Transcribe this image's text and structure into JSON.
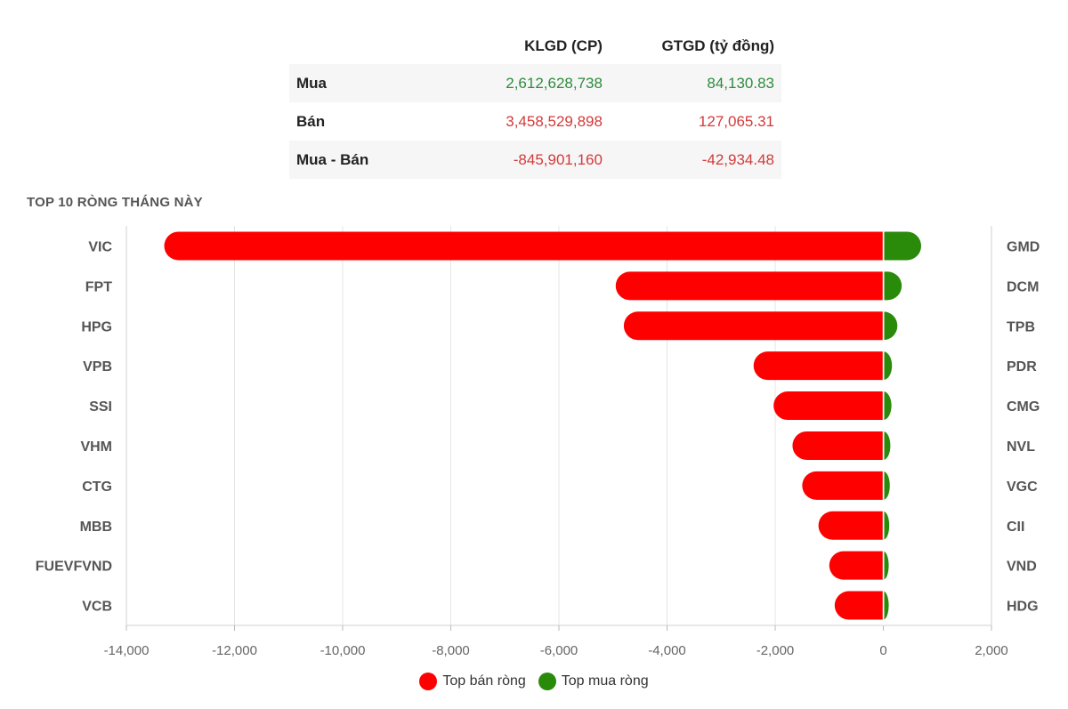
{
  "summary": {
    "headers": [
      "KLGD (CP)",
      "GTGD (tỷ đồng)"
    ],
    "rows": [
      {
        "label": "Mua",
        "klgd": "2,612,628,738",
        "gtgd": "84,130.83"
      },
      {
        "label": "Bán",
        "klgd": "3,458,529,898",
        "gtgd": "127,065.31"
      },
      {
        "label": "Mua - Bán",
        "klgd": "-845,901,160",
        "gtgd": "-42,934.48"
      }
    ]
  },
  "colors": {
    "sell": "#ff0000",
    "buy": "#2a8a0a",
    "positive_text": "#2e8b3c",
    "negative_text": "#d23a3a"
  },
  "chart_data": {
    "type": "bar",
    "orientation": "horizontal",
    "title": "TOP 10 RÒNG THÁNG NÀY",
    "sell_categories": [
      "VIC",
      "FPT",
      "HPG",
      "VPB",
      "SSI",
      "VHM",
      "CTG",
      "MBB",
      "FUEVFVND",
      "VCB"
    ],
    "buy_categories": [
      "GMD",
      "DCM",
      "TPB",
      "PDR",
      "CMG",
      "NVL",
      "VGC",
      "CII",
      "VND",
      "HDG"
    ],
    "series": [
      {
        "name": "Top bán ròng",
        "values": [
          -13300,
          -4950,
          -4800,
          -2400,
          -2030,
          -1680,
          -1500,
          -1200,
          -1000,
          -900
        ]
      },
      {
        "name": "Top mua ròng",
        "values": [
          700,
          340,
          260,
          160,
          150,
          130,
          120,
          110,
          100,
          100
        ]
      }
    ],
    "xlim": [
      -14000,
      2000
    ],
    "xticks": [
      -14000,
      -12000,
      -10000,
      -8000,
      -6000,
      -4000,
      -2000,
      0,
      2000
    ],
    "xtick_labels": [
      "-14,000",
      "-12,000",
      "-10,000",
      "-8,000",
      "-6,000",
      "-4,000",
      "-2,000",
      "0",
      "2,000"
    ],
    "grid": true,
    "legend_position": "bottom-center"
  }
}
